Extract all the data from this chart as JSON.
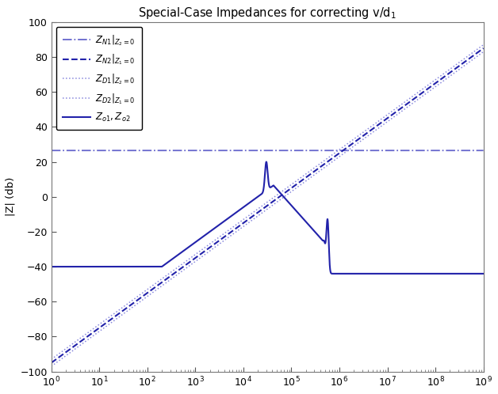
{
  "title": "Special-Case Impedances for correcting v/d$_1$",
  "ylabel": "|Z| (db)",
  "xlim": [
    1.0,
    1000000000.0
  ],
  "ylim": [
    -100,
    100
  ],
  "yticks": [
    -100,
    -80,
    -60,
    -40,
    -20,
    0,
    20,
    40,
    60,
    80,
    100
  ],
  "ZN1_level": 26.5,
  "color_dark": "#2222AA",
  "color_light": "#6666CC",
  "color_vlight": "#8888DD",
  "legend_labels": [
    "$Z_{N1}|_{Z_2=0}$",
    "$Z_{N2}|_{Z_1=0}$",
    "$Z_{D1}|_{Z_2=0}$",
    "$Z_{D2}|_{Z_1=0}$",
    "$Z_{o1},Z_{o2}$"
  ],
  "ZN2_intercept": -95,
  "ZD1_intercept": -97,
  "ZD2_intercept": -93,
  "zo_flat_level": -40,
  "zo_flat_end": 200,
  "f_res1": 30000,
  "f_res2": 500000,
  "zo_settle": -44
}
